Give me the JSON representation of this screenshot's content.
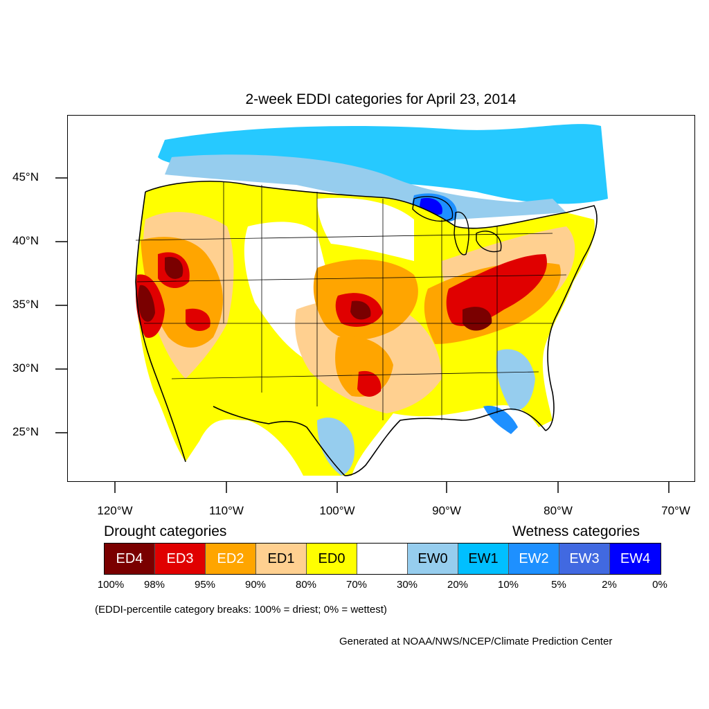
{
  "title": "2-week EDDI categories for April 23, 2014",
  "lat_labels": [
    "45°N",
    "40°N",
    "35°N",
    "30°N",
    "25°N"
  ],
  "lon_labels": [
    "120°W",
    "110°W",
    "100°W",
    "90°W",
    "80°W",
    "70°W"
  ],
  "legend": {
    "drought_heading": "Drought categories",
    "wetness_heading": "Wetness categories",
    "cells": [
      {
        "label": "ED4",
        "color": "#7a0000",
        "text_color": "#ffffff"
      },
      {
        "label": "ED3",
        "color": "#e00000",
        "text_color": "#ffffff"
      },
      {
        "label": "ED2",
        "color": "#ffa500",
        "text_color": "#ffffff"
      },
      {
        "label": "ED1",
        "color": "#ffd090",
        "text_color": "#000000"
      },
      {
        "label": "ED0",
        "color": "#ffff00",
        "text_color": "#000000"
      },
      {
        "label": "",
        "color": "#ffffff",
        "text_color": "#000000"
      },
      {
        "label": "EW0",
        "color": "#96cdee",
        "text_color": "#000000"
      },
      {
        "label": "EW1",
        "color": "#00bfff",
        "text_color": "#000000"
      },
      {
        "label": "EW2",
        "color": "#1e90ff",
        "text_color": "#ffffff"
      },
      {
        "label": "EW3",
        "color": "#4169e1",
        "text_color": "#ffffff"
      },
      {
        "label": "EW4",
        "color": "#0000ff",
        "text_color": "#ffffff"
      }
    ],
    "percentiles": [
      "100%",
      "98%",
      "95%",
      "90%",
      "80%",
      "70%",
      "30%",
      "20%",
      "10%",
      "5%",
      "2%",
      "0%"
    ]
  },
  "note": "(EDDI-percentile category breaks: 100% = driest; 0% = wettest)",
  "credit": "Generated at NOAA/NWS/NCEP/Climate Prediction Center"
}
